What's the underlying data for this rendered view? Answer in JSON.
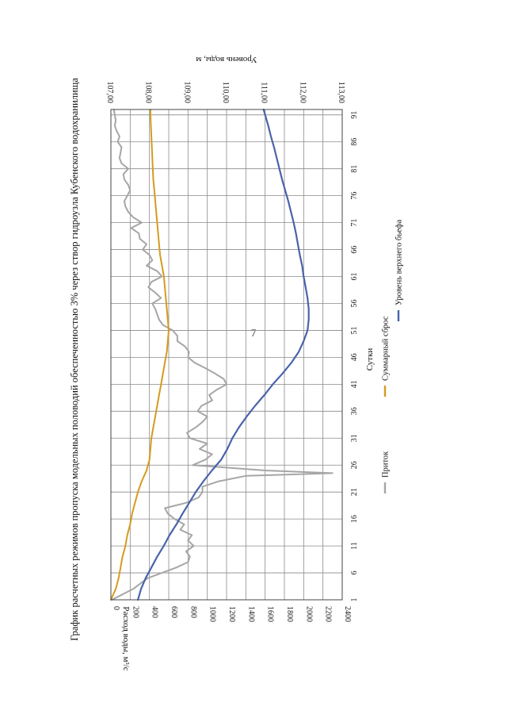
{
  "page": {
    "number": "7"
  },
  "chart_data": {
    "type": "line",
    "title": "График расчетных режимов пропуска модельных половодий обеспеченностью 3% через створ гидроузла Кубенского водохранилища",
    "xlabel": "Сутки",
    "ylabel": "Расход воды, м³/с",
    "y2label": "Уровень воды, м",
    "orientation": "rotated-90",
    "grid": true,
    "legend_position": "bottom",
    "x_ticks": [
      "1",
      "6",
      "11",
      "16",
      "21",
      "26",
      "31",
      "36",
      "41",
      "46",
      "51",
      "56",
      "61",
      "66",
      "71",
      "76",
      "81",
      "86",
      "91"
    ],
    "xlim": [
      1,
      92
    ],
    "ylim": [
      0,
      2400
    ],
    "y_ticks": [
      "0",
      "200",
      "400",
      "600",
      "800",
      "1000",
      "1200",
      "1400",
      "1600",
      "1800",
      "2000",
      "2200",
      "2400"
    ],
    "y2lim": [
      107,
      113
    ],
    "y2_ticks": [
      "107,00",
      "108,00",
      "109,00",
      "110,00",
      "111,00",
      "112,00",
      "113,00"
    ],
    "series": [
      {
        "name": "Приток",
        "axis": "left",
        "color": "#a6a6a6",
        "x": [
          1,
          3,
          5,
          7,
          8,
          9,
          10,
          11,
          12,
          13,
          14,
          15,
          16,
          17,
          18,
          19,
          20,
          21,
          22,
          23,
          24,
          24.5,
          25,
          26,
          27,
          28,
          29,
          30,
          31,
          32,
          33,
          34,
          35,
          36,
          37,
          38,
          39,
          40,
          41,
          42,
          43,
          44,
          45,
          46,
          47,
          48,
          49,
          50,
          51,
          52,
          53,
          54,
          55,
          56,
          57,
          58,
          59,
          60,
          61,
          62,
          63,
          64,
          65,
          66,
          67,
          68,
          69,
          70,
          71,
          72,
          73,
          74,
          75,
          76,
          77,
          78,
          79,
          80,
          81,
          82,
          83,
          84,
          85,
          86,
          87,
          88,
          89,
          90,
          91,
          92
        ],
        "values": [
          10,
          230,
          380,
          680,
          800,
          820,
          780,
          860,
          800,
          840,
          720,
          760,
          660,
          590,
          560,
          780,
          910,
          950,
          950,
          1120,
          1400,
          2300,
          1600,
          850,
          980,
          1050,
          920,
          1000,
          820,
          790,
          880,
          950,
          1000,
          900,
          940,
          1050,
          1020,
          1100,
          1200,
          1170,
          1080,
          980,
          870,
          800,
          810,
          770,
          690,
          690,
          640,
          540,
          500,
          480,
          460,
          430,
          520,
          460,
          390,
          420,
          530,
          480,
          370,
          430,
          400,
          330,
          370,
          300,
          290,
          210,
          320,
          230,
          180,
          150,
          140,
          170,
          200,
          180,
          140,
          130,
          180,
          110,
          90,
          100,
          110,
          70,
          90,
          60,
          40,
          50,
          40,
          30
        ]
      },
      {
        "name": "Суммарный сброс",
        "axis": "left",
        "color": "#d59b1f",
        "x": [
          1,
          3,
          5,
          7,
          9,
          11,
          13,
          15,
          17,
          19,
          21,
          23,
          25,
          27,
          29,
          31,
          33,
          35,
          37,
          39,
          41,
          43,
          45,
          47,
          49,
          51,
          53,
          55,
          57,
          59,
          61,
          63,
          65,
          67,
          69,
          71,
          73,
          75,
          77,
          79,
          81,
          83,
          85,
          87,
          89,
          91,
          92
        ],
        "values": [
          0,
          50,
          80,
          100,
          120,
          150,
          170,
          200,
          220,
          250,
          280,
          320,
          370,
          400,
          410,
          420,
          440,
          460,
          480,
          500,
          520,
          540,
          560,
          580,
          590,
          600,
          590,
          580,
          570,
          560,
          550,
          530,
          510,
          500,
          490,
          480,
          470,
          460,
          450,
          440,
          435,
          430,
          425,
          420,
          415,
          410,
          410
        ]
      },
      {
        "name": "Уровень верхнего бьефа",
        "axis": "right",
        "color": "#4a63ab",
        "x": [
          1,
          3,
          5,
          7,
          9,
          11,
          13,
          15,
          17,
          19,
          21,
          23,
          25,
          27,
          29,
          31,
          33,
          35,
          37,
          39,
          41,
          43,
          45,
          47,
          49,
          51,
          53,
          55,
          57,
          59,
          61,
          63,
          65,
          67,
          69,
          71,
          73,
          75,
          77,
          79,
          81,
          83,
          85,
          87,
          89,
          91,
          92
        ],
        "values": [
          107.7,
          107.78,
          107.9,
          108.05,
          108.2,
          108.37,
          108.52,
          108.7,
          108.86,
          109.03,
          109.2,
          109.4,
          109.62,
          109.86,
          110.02,
          110.15,
          110.32,
          110.52,
          110.74,
          110.98,
          111.2,
          111.45,
          111.68,
          111.87,
          112.0,
          112.1,
          112.13,
          112.13,
          112.1,
          112.05,
          112.0,
          111.96,
          111.9,
          111.85,
          111.8,
          111.74,
          111.67,
          111.6,
          111.52,
          111.44,
          111.37,
          111.3,
          111.23,
          111.15,
          111.08,
          111.0,
          110.96
        ]
      }
    ]
  }
}
